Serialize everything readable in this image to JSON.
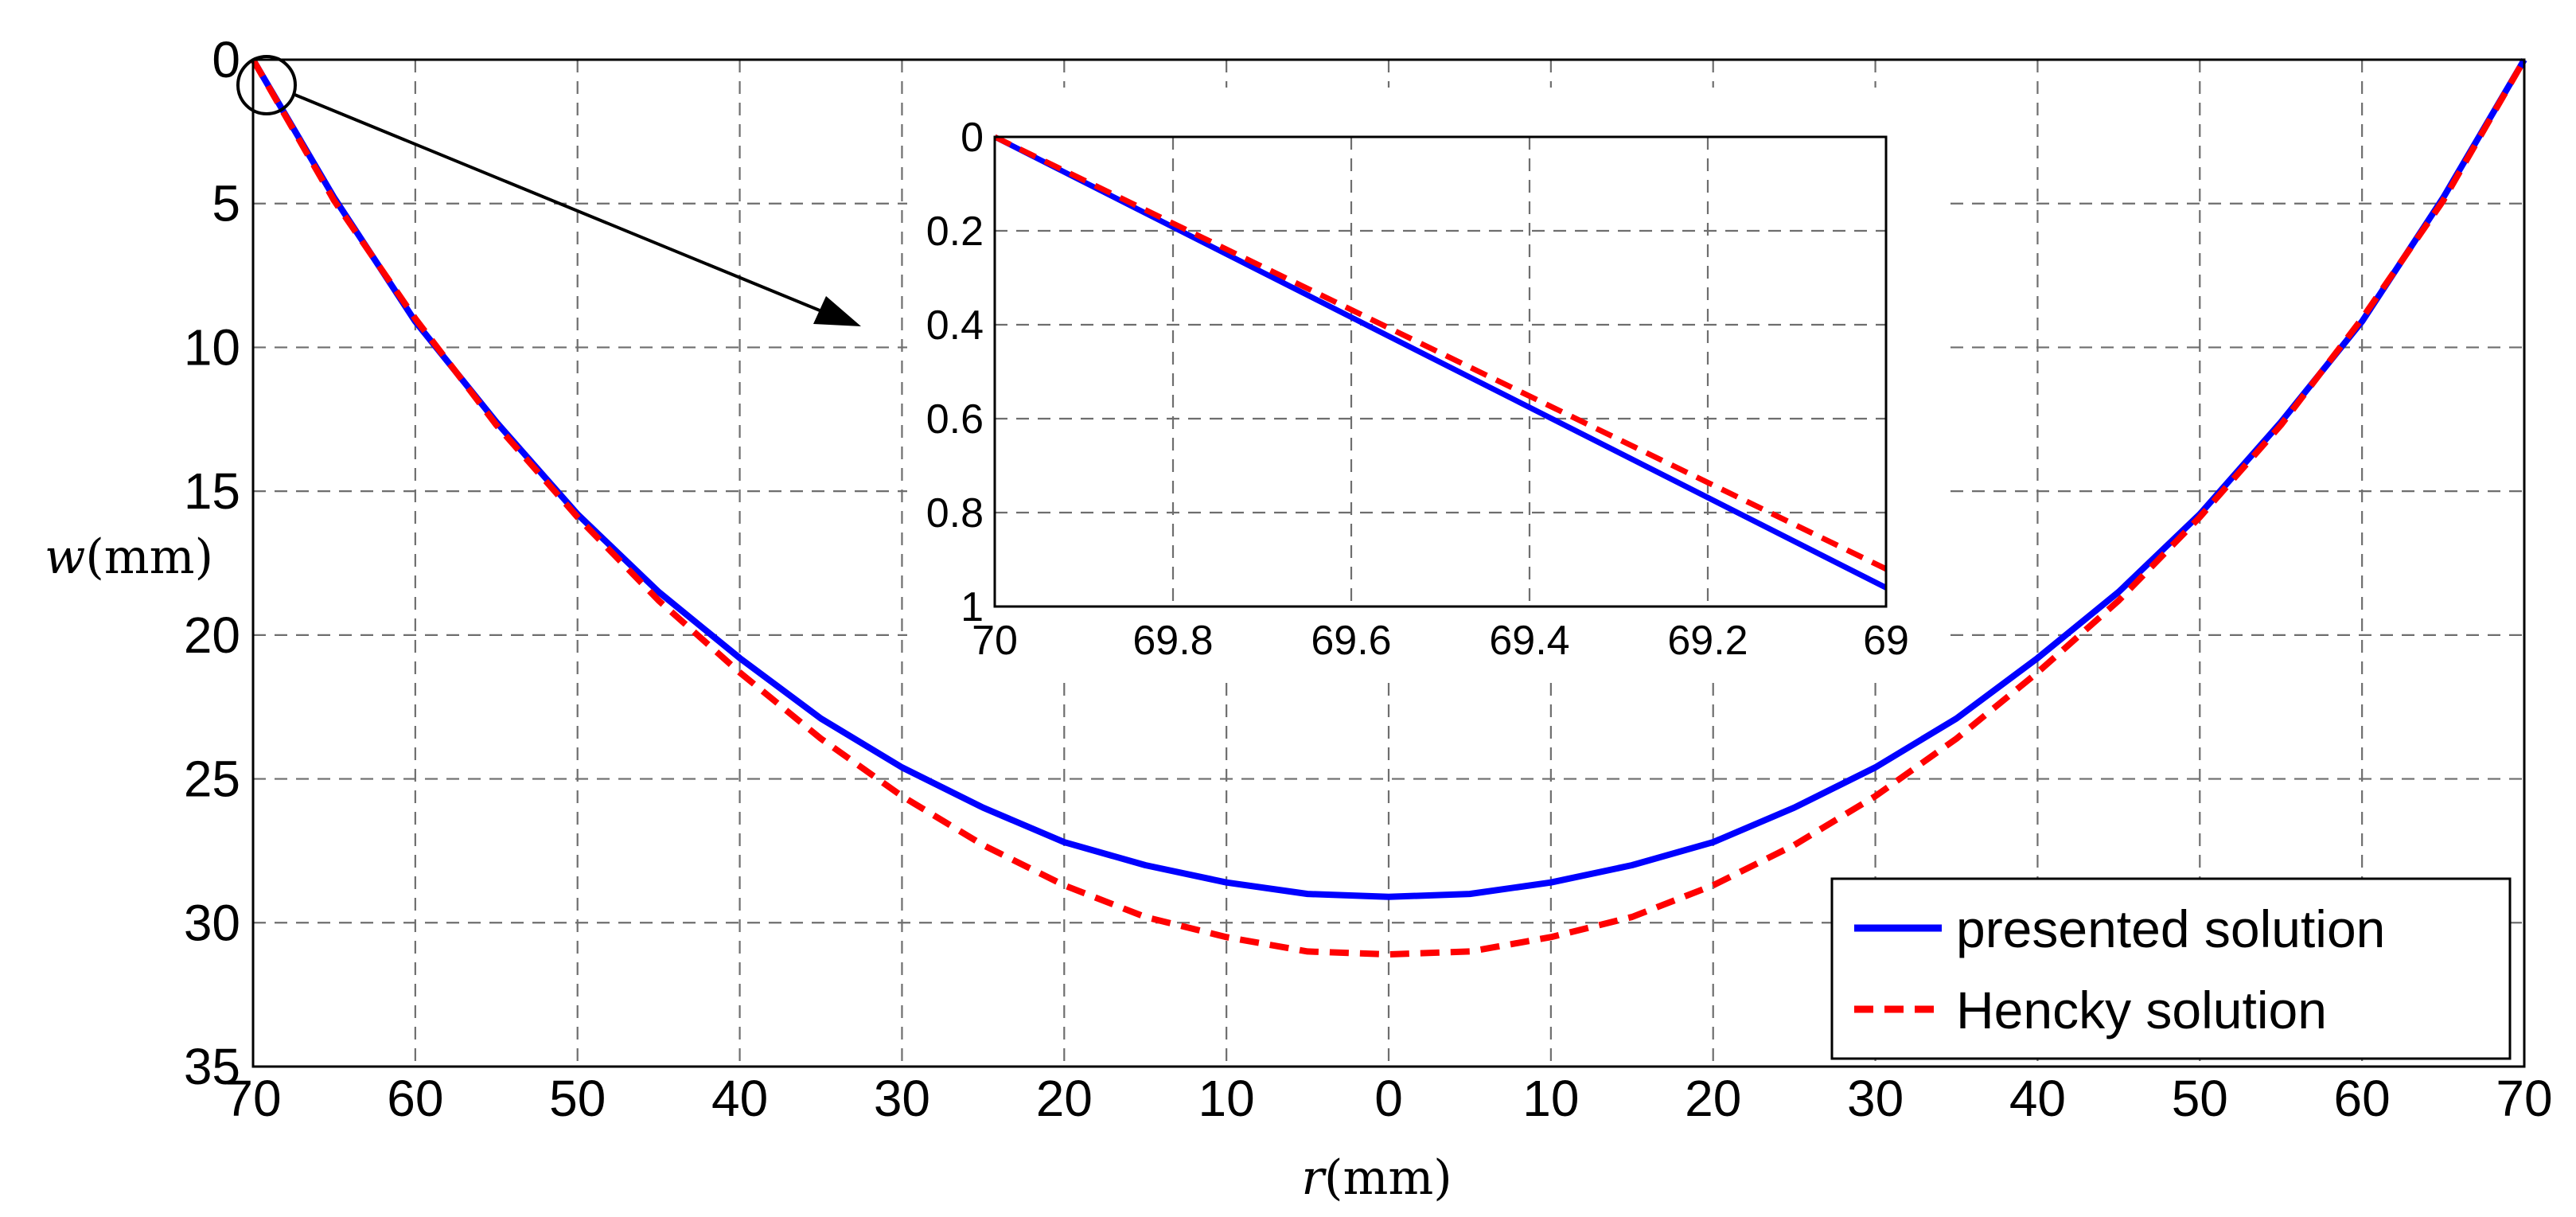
{
  "chart_data": {
    "type": "line",
    "xlabel_var": "r",
    "xlabel_unit": "(mm)",
    "ylabel_var": "w",
    "ylabel_unit": "(mm)",
    "x_tick_labels": [
      "70",
      "60",
      "50",
      "40",
      "30",
      "20",
      "10",
      "0",
      "10",
      "20",
      "30",
      "40",
      "50",
      "60",
      "70"
    ],
    "x": [
      -70,
      -65,
      -60,
      -55,
      -50,
      -45,
      -40,
      -35,
      -30,
      -25,
      -20,
      -15,
      -10,
      -5,
      0,
      5,
      10,
      15,
      20,
      25,
      30,
      35,
      40,
      45,
      50,
      55,
      60,
      65,
      70
    ],
    "xlim": [
      -70,
      70
    ],
    "ylim": [
      0,
      35
    ],
    "y_reversed": true,
    "y_ticks": [
      0,
      5,
      10,
      15,
      20,
      25,
      30,
      35
    ],
    "grid": true,
    "series": [
      {
        "name": "presented solution",
        "color": "#0000ff",
        "style": "solid",
        "values": [
          0,
          4.8,
          9.1,
          12.6,
          15.8,
          18.5,
          20.8,
          22.9,
          24.6,
          26.0,
          27.2,
          28.0,
          28.6,
          29.0,
          29.1,
          29.0,
          28.6,
          28.0,
          27.2,
          26.0,
          24.6,
          22.9,
          20.8,
          18.5,
          15.8,
          12.6,
          9.1,
          4.8,
          0
        ]
      },
      {
        "name": "Hencky solution",
        "color": "#ff0000",
        "style": "dashed",
        "values": [
          0,
          4.9,
          9.0,
          12.7,
          15.9,
          18.8,
          21.3,
          23.6,
          25.6,
          27.3,
          28.7,
          29.8,
          30.5,
          31.0,
          31.1,
          31.0,
          30.5,
          29.8,
          28.7,
          27.3,
          25.6,
          23.6,
          21.3,
          18.8,
          15.9,
          12.7,
          9.0,
          4.9,
          0
        ]
      }
    ],
    "legend_position": "bottom-right",
    "inset": {
      "x_tick_labels": [
        "70",
        "69.8",
        "69.6",
        "69.4",
        "69.2",
        "69"
      ],
      "x_ticks": [
        70,
        69.8,
        69.6,
        69.4,
        69.2,
        69
      ],
      "xlim": [
        70,
        69
      ],
      "y_tick_labels": [
        "0",
        "0.2",
        "0.4",
        "0.6",
        "0.8",
        "1"
      ],
      "y_ticks": [
        0,
        0.2,
        0.4,
        0.6,
        0.8,
        1
      ],
      "ylim": [
        0,
        1
      ],
      "series": [
        {
          "name": "presented solution",
          "x": [
            70,
            69
          ],
          "values": [
            0,
            0.96
          ]
        },
        {
          "name": "Hencky solution",
          "x": [
            70,
            69
          ],
          "values": [
            0,
            0.92
          ]
        }
      ]
    }
  }
}
